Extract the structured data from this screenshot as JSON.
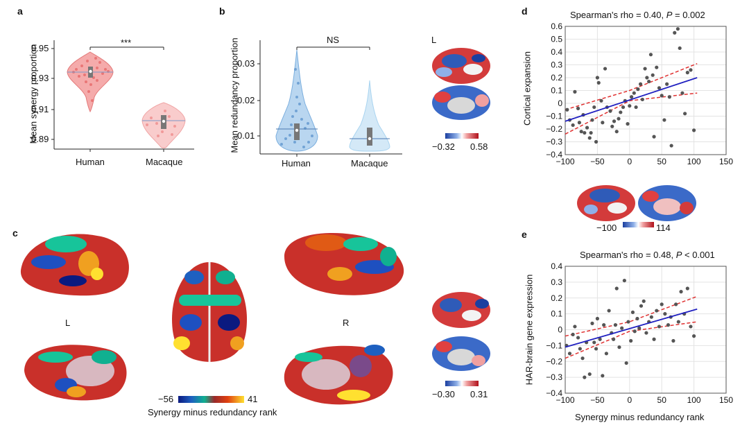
{
  "panels": {
    "a": "a",
    "b": "b",
    "c": "c",
    "d": "d",
    "e": "e"
  },
  "panel_a": {
    "ylabel": "Mean synergy proportion",
    "yticks": [
      "0.95",
      "0.93",
      "0.91",
      "0.89"
    ],
    "categories": [
      "Human",
      "Macaque"
    ],
    "significance": "***"
  },
  "panel_b": {
    "ylabel": "Mean redundancy proportion",
    "yticks": [
      "0.03",
      "0.02",
      "0.01"
    ],
    "categories": [
      "Human",
      "Macaque"
    ],
    "significance": "NS",
    "hemi_label": "L",
    "colorbar_min": "−0.32",
    "colorbar_max": "0.58"
  },
  "panel_c": {
    "left_label": "L",
    "right_label": "R",
    "colorbar_min": "−56",
    "colorbar_max": "41",
    "colorbar_title": "Synergy minus redundancy rank",
    "small_colorbar_min": "−0.30",
    "small_colorbar_max": "0.31"
  },
  "panel_d": {
    "title_prefix": "Spearman's rho = 0.40, ",
    "title_italic": "P",
    "title_suffix": " = 0.002",
    "ylabel": "Cortical expansion",
    "colorbar_min": "−100",
    "colorbar_max": "114"
  },
  "panel_e": {
    "title_prefix": "Spearman's rho = 0.48, ",
    "title_italic": "P",
    "title_suffix": " < 0.001",
    "ylabel": "HAR-brain gene expression",
    "xlabel": "Synergy minus redundancy rank"
  },
  "colors": {
    "human": "#f08080",
    "macaque": "#f5b7b7",
    "human_b": "#7aaede",
    "macaque_b": "#a9d4f0",
    "fit": "#2020c0",
    "ci": "#e03030",
    "points": "#555555"
  },
  "chart_data": [
    {
      "id": "d",
      "type": "scatter",
      "title": "Spearman's rho = 0.40, P = 0.002",
      "xlabel": "",
      "ylabel": "Cortical expansion",
      "xlim": [
        -100,
        150
      ],
      "ylim": [
        -0.4,
        0.6
      ],
      "xticks": [
        -100,
        -50,
        0,
        50,
        100,
        150
      ],
      "yticks": [
        -0.4,
        -0.3,
        -0.2,
        -0.1,
        0,
        0.1,
        0.2,
        0.3,
        0.4,
        0.5,
        0.6
      ],
      "points": [
        [
          -97,
          -0.05
        ],
        [
          -93,
          -0.13
        ],
        [
          -88,
          -0.17
        ],
        [
          -85,
          0.09
        ],
        [
          -80,
          -0.04
        ],
        [
          -78,
          -0.15
        ],
        [
          -75,
          -0.22
        ],
        [
          -72,
          -0.09
        ],
        [
          -70,
          -0.23
        ],
        [
          -66,
          -0.19
        ],
        [
          -62,
          -0.27
        ],
        [
          -60,
          -0.23
        ],
        [
          -58,
          -0.13
        ],
        [
          -55,
          -0.03
        ],
        [
          -52,
          -0.3
        ],
        [
          -50,
          0.2
        ],
        [
          -48,
          0.16
        ],
        [
          -44,
          0.02
        ],
        [
          -42,
          -0.15
        ],
        [
          -38,
          0.27
        ],
        [
          -35,
          -0.03
        ],
        [
          -30,
          -0.06
        ],
        [
          -27,
          -0.18
        ],
        [
          -24,
          -0.14
        ],
        [
          -20,
          -0.22
        ],
        [
          -17,
          -0.12
        ],
        [
          -14,
          -0.07
        ],
        [
          -10,
          -0.03
        ],
        [
          -7,
          0.02
        ],
        [
          -3,
          -0.16
        ],
        [
          0,
          -0.02
        ],
        [
          3,
          0.05
        ],
        [
          7,
          0.08
        ],
        [
          10,
          -0.03
        ],
        [
          13,
          0.11
        ],
        [
          17,
          0.15
        ],
        [
          20,
          0.03
        ],
        [
          24,
          0.27
        ],
        [
          27,
          0.2
        ],
        [
          30,
          0.17
        ],
        [
          33,
          0.38
        ],
        [
          36,
          0.22
        ],
        [
          38,
          -0.26
        ],
        [
          42,
          0.28
        ],
        [
          46,
          0.12
        ],
        [
          50,
          0.06
        ],
        [
          54,
          -0.13
        ],
        [
          58,
          0.15
        ],
        [
          62,
          0.05
        ],
        [
          65,
          -0.33
        ],
        [
          70,
          0.55
        ],
        [
          75,
          0.58
        ],
        [
          78,
          0.43
        ],
        [
          82,
          0.08
        ],
        [
          86,
          -0.08
        ],
        [
          90,
          0.24
        ],
        [
          95,
          0.26
        ],
        [
          100,
          -0.21
        ]
      ],
      "fit_line": [
        [
          -100,
          -0.14
        ],
        [
          105,
          0.2
        ]
      ],
      "ci_upper": [
        [
          -100,
          -0.05
        ],
        [
          0,
          0.1
        ],
        [
          105,
          0.31
        ]
      ],
      "ci_lower": [
        [
          -100,
          -0.24
        ],
        [
          0,
          0.02
        ],
        [
          105,
          0.08
        ]
      ]
    },
    {
      "id": "e",
      "type": "scatter",
      "title": "Spearman's rho = 0.48, P < 0.001",
      "xlabel": "Synergy minus redundancy rank",
      "ylabel": "HAR-brain gene expression",
      "xlim": [
        -100,
        150
      ],
      "ylim": [
        -0.4,
        0.4
      ],
      "xticks": [
        -100,
        -50,
        0,
        50,
        100,
        150
      ],
      "yticks": [
        -0.4,
        -0.3,
        -0.2,
        -0.1,
        0,
        0.1,
        0.2,
        0.3,
        0.4
      ],
      "points": [
        [
          -98,
          -0.1
        ],
        [
          -93,
          -0.15
        ],
        [
          -88,
          -0.03
        ],
        [
          -85,
          0.02
        ],
        [
          -80,
          -0.05
        ],
        [
          -77,
          -0.12
        ],
        [
          -73,
          -0.18
        ],
        [
          -70,
          -0.3
        ],
        [
          -67,
          -0.08
        ],
        [
          -62,
          -0.28
        ],
        [
          -58,
          0.04
        ],
        [
          -55,
          -0.08
        ],
        [
          -52,
          -0.12
        ],
        [
          -50,
          0.07
        ],
        [
          -46,
          -0.06
        ],
        [
          -42,
          -0.29
        ],
        [
          -40,
          0.03
        ],
        [
          -36,
          -0.15
        ],
        [
          -32,
          0.12
        ],
        [
          -28,
          -0.02
        ],
        [
          -25,
          -0.06
        ],
        [
          -22,
          0.03
        ],
        [
          -20,
          0.26
        ],
        [
          -16,
          -0.11
        ],
        [
          -12,
          0.01
        ],
        [
          -8,
          0.31
        ],
        [
          -5,
          -0.21
        ],
        [
          -2,
          0.05
        ],
        [
          2,
          -0.07
        ],
        [
          5,
          0.11
        ],
        [
          8,
          -0.01
        ],
        [
          12,
          0.07
        ],
        [
          15,
          0.01
        ],
        [
          18,
          0.15
        ],
        [
          22,
          0.18
        ],
        [
          26,
          -0.02
        ],
        [
          30,
          0.05
        ],
        [
          34,
          0.08
        ],
        [
          38,
          -0.06
        ],
        [
          42,
          0.12
        ],
        [
          46,
          0.02
        ],
        [
          50,
          0.16
        ],
        [
          55,
          0.1
        ],
        [
          60,
          0.03
        ],
        [
          64,
          0.08
        ],
        [
          68,
          -0.07
        ],
        [
          72,
          0.16
        ],
        [
          76,
          0.05
        ],
        [
          80,
          0.24
        ],
        [
          85,
          0.1
        ],
        [
          90,
          0.26
        ],
        [
          95,
          0.02
        ],
        [
          100,
          -0.04
        ]
      ],
      "fit_line": [
        [
          -100,
          -0.11
        ],
        [
          105,
          0.13
        ]
      ],
      "ci_upper": [
        [
          -100,
          -0.04
        ],
        [
          0,
          0.05
        ],
        [
          105,
          0.21
        ]
      ],
      "ci_lower": [
        [
          -100,
          -0.18
        ],
        [
          0,
          -0.01
        ],
        [
          105,
          0.05
        ]
      ]
    },
    {
      "id": "a",
      "type": "violin",
      "ylabel": "Mean synergy proportion",
      "categories": [
        "Human",
        "Macaque"
      ],
      "ylim": [
        0.88,
        0.955
      ],
      "medians": [
        0.936,
        0.902
      ]
    },
    {
      "id": "b",
      "type": "violin",
      "ylabel": "Mean redundancy proportion",
      "categories": [
        "Human",
        "Macaque"
      ],
      "ylim": [
        0.004,
        0.036
      ],
      "medians": [
        0.0115,
        0.0105
      ]
    }
  ]
}
